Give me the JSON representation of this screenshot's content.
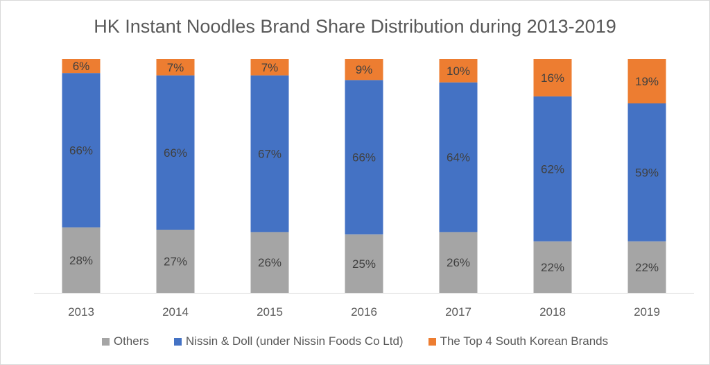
{
  "chart_data": {
    "type": "bar",
    "stacked": true,
    "title": "HK Instant Noodles Brand Share Distribution during 2013-2019",
    "xlabel": "",
    "ylabel": "",
    "ylim": [
      0,
      100
    ],
    "grid": false,
    "legend_position": "bottom",
    "categories": [
      "2013",
      "2014",
      "2015",
      "2016",
      "2017",
      "2018",
      "2019"
    ],
    "series": [
      {
        "name": "Others",
        "color": "#a5a5a5",
        "values": [
          28,
          27,
          26,
          25,
          26,
          22,
          22
        ]
      },
      {
        "name": "Nissin & Doll (under Nissin Foods Co Ltd)",
        "color": "#4472c4",
        "values": [
          66,
          66,
          67,
          66,
          64,
          62,
          59
        ]
      },
      {
        "name": "The Top 4 South Korean Brands",
        "color": "#ed7d31",
        "values": [
          6,
          7,
          7,
          9,
          10,
          16,
          19
        ]
      }
    ],
    "data_label_suffix": "%"
  }
}
